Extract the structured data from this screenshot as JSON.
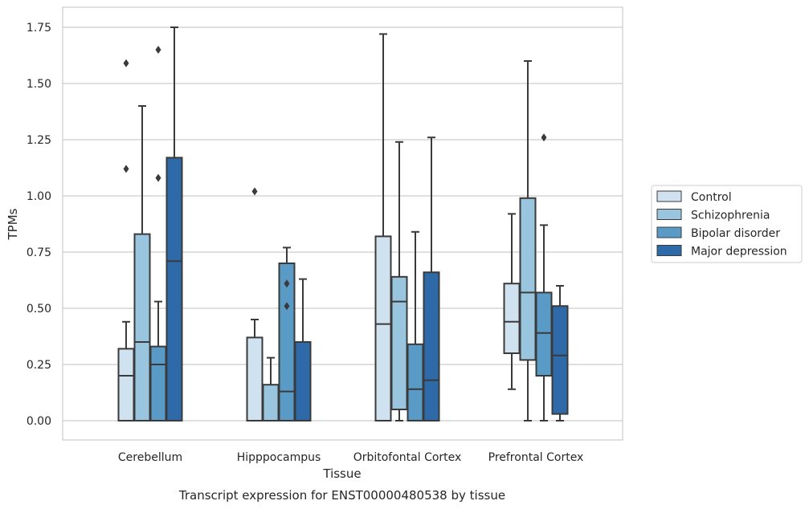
{
  "chart_data": {
    "type": "boxplot",
    "caption": "Transcript expression for ENST00000480538 by tissue",
    "xlabel": "Tissue",
    "ylabel": "TPMs",
    "ylim": [
      -0.08,
      1.84
    ],
    "yticks": [
      0.0,
      0.25,
      0.5,
      0.75,
      1.0,
      1.25,
      1.5,
      1.75
    ],
    "ytick_labels": [
      "0.00",
      "0.25",
      "0.50",
      "0.75",
      "1.00",
      "1.25",
      "1.50",
      "1.75"
    ],
    "grid": "horizontal",
    "legend_position": "right",
    "categories": [
      "Cerebellum",
      "Hipppocampus",
      "Orbitofontal Cortex",
      "Prefrontal Cortex"
    ],
    "series": [
      {
        "name": "Control",
        "color": "#d0e1f0",
        "boxes": [
          {
            "whislo": 0.0,
            "q1": 0.0,
            "med": 0.2,
            "q3": 0.32,
            "whishi": 0.44,
            "fliers": [
              1.12,
              1.59
            ]
          },
          {
            "whislo": 0.0,
            "q1": 0.0,
            "med": 0.0,
            "q3": 0.37,
            "whishi": 0.45,
            "fliers": [
              1.02
            ]
          },
          {
            "whislo": 0.0,
            "q1": 0.0,
            "med": 0.43,
            "q3": 0.82,
            "whishi": 1.72,
            "fliers": []
          },
          {
            "whislo": 0.14,
            "q1": 0.3,
            "med": 0.44,
            "q3": 0.61,
            "whishi": 0.92,
            "fliers": []
          }
        ]
      },
      {
        "name": "Schizophrenia",
        "color": "#9ac5de",
        "boxes": [
          {
            "whislo": 0.0,
            "q1": 0.0,
            "med": 0.35,
            "q3": 0.83,
            "whishi": 1.4,
            "fliers": []
          },
          {
            "whislo": 0.0,
            "q1": 0.0,
            "med": 0.0,
            "q3": 0.16,
            "whishi": 0.28,
            "fliers": []
          },
          {
            "whislo": 0.0,
            "q1": 0.05,
            "med": 0.53,
            "q3": 0.64,
            "whishi": 1.24,
            "fliers": []
          },
          {
            "whislo": 0.0,
            "q1": 0.27,
            "med": 0.57,
            "q3": 0.99,
            "whishi": 1.6,
            "fliers": []
          }
        ]
      },
      {
        "name": "Bipolar disorder",
        "color": "#5a9ac7",
        "boxes": [
          {
            "whislo": 0.0,
            "q1": 0.0,
            "med": 0.25,
            "q3": 0.33,
            "whishi": 0.53,
            "fliers": [
              1.08,
              1.65
            ]
          },
          {
            "whislo": 0.0,
            "q1": 0.0,
            "med": 0.13,
            "q3": 0.7,
            "whishi": 0.77,
            "fliers": [
              0.51,
              0.61
            ]
          },
          {
            "whislo": 0.0,
            "q1": 0.0,
            "med": 0.14,
            "q3": 0.34,
            "whishi": 0.84,
            "fliers": []
          },
          {
            "whislo": 0.0,
            "q1": 0.2,
            "med": 0.39,
            "q3": 0.57,
            "whishi": 0.87,
            "fliers": [
              1.26
            ]
          }
        ]
      },
      {
        "name": "Major depression",
        "color": "#2e6aa8",
        "boxes": [
          {
            "whislo": 0.0,
            "q1": 0.0,
            "med": 0.71,
            "q3": 1.17,
            "whishi": 1.75,
            "fliers": []
          },
          {
            "whislo": 0.0,
            "q1": 0.0,
            "med": 0.0,
            "q3": 0.35,
            "whishi": 0.63,
            "fliers": []
          },
          {
            "whislo": 0.0,
            "q1": 0.0,
            "med": 0.18,
            "q3": 0.66,
            "whishi": 1.26,
            "fliers": []
          },
          {
            "whislo": 0.0,
            "q1": 0.03,
            "med": 0.29,
            "q3": 0.51,
            "whishi": 0.6,
            "fliers": []
          }
        ]
      }
    ]
  }
}
